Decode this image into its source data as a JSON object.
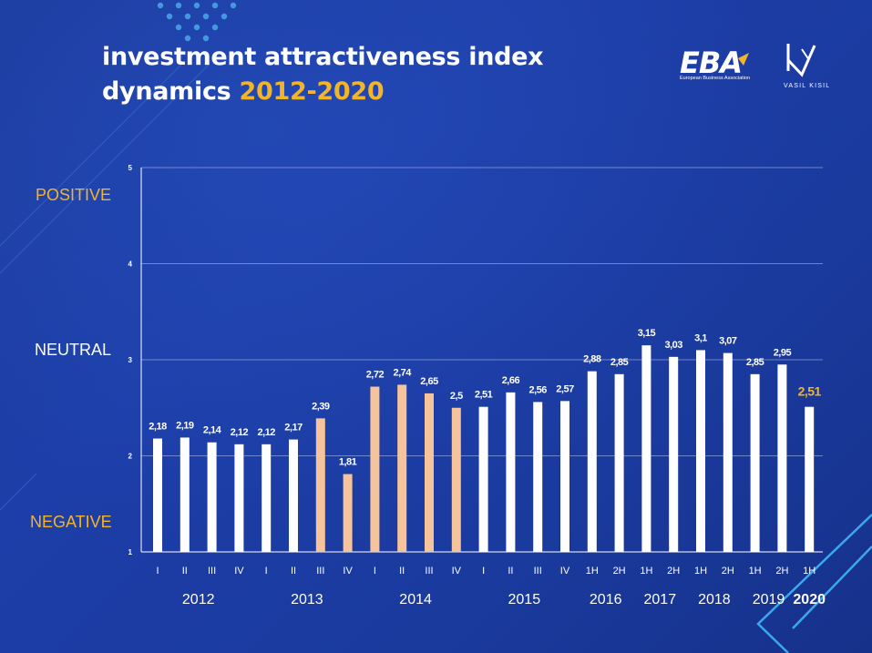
{
  "title": {
    "line1": "investment attractiveness index",
    "line2_prefix": "dynamics ",
    "line2_accent": "2012-2020"
  },
  "logos": {
    "eba": {
      "text": "EBA",
      "subtitle": "European Business Association"
    },
    "vk": {
      "text": "VASIL KISIL"
    }
  },
  "side_labels": {
    "positive": "POSITIVE",
    "neutral": "NEUTRAL",
    "negative": "NEGATIVE"
  },
  "colors": {
    "bar_default": "#ffffff",
    "bar_highlight": "#f7c39a",
    "accent": "#f2b52a",
    "grid": "#a9b9e8"
  },
  "chart_data": {
    "type": "bar",
    "ylim": [
      1,
      5
    ],
    "yticks": [
      "1",
      "2",
      "3",
      "4",
      "5"
    ],
    "grid": true,
    "categories": [
      "I",
      "II",
      "III",
      "IV",
      "I",
      "II",
      "III",
      "IV",
      "I",
      "II",
      "III",
      "IV",
      "I",
      "II",
      "III",
      "IV",
      "1H",
      "2H",
      "1H",
      "2H",
      "1H",
      "2H",
      "1H",
      "2H",
      "1H"
    ],
    "values": [
      2.18,
      2.19,
      2.14,
      2.12,
      2.12,
      2.17,
      2.39,
      1.81,
      2.72,
      2.74,
      2.65,
      2.5,
      2.51,
      2.66,
      2.56,
      2.57,
      2.88,
      2.85,
      3.15,
      3.03,
      3.1,
      3.07,
      2.85,
      2.95,
      2.51
    ],
    "value_labels": [
      "2,18",
      "2,19",
      "2,14",
      "2,12",
      "2,12",
      "2,17",
      "2,39",
      "1,81",
      "2,72",
      "2,74",
      "2,65",
      "2,5",
      "2,51",
      "2,66",
      "2,56",
      "2,57",
      "2,88",
      "2,85",
      "3,15",
      "3,03",
      "3,1",
      "3,07",
      "2,85",
      "2,95",
      "2,51"
    ],
    "highlighted": [
      6,
      7,
      8,
      9,
      10,
      11
    ],
    "latest_index": 24,
    "year_groups": [
      {
        "label": "2012",
        "start": 0,
        "end": 3
      },
      {
        "label": "2013",
        "start": 4,
        "end": 7
      },
      {
        "label": "2014",
        "start": 8,
        "end": 11
      },
      {
        "label": "2015",
        "start": 12,
        "end": 15
      },
      {
        "label": "2016",
        "start": 16,
        "end": 17
      },
      {
        "label": "2017",
        "start": 18,
        "end": 19
      },
      {
        "label": "2018",
        "start": 20,
        "end": 21
      },
      {
        "label": "2019",
        "start": 22,
        "end": 23
      },
      {
        "label": "2020",
        "start": 24,
        "end": 24,
        "bold": true
      }
    ]
  }
}
